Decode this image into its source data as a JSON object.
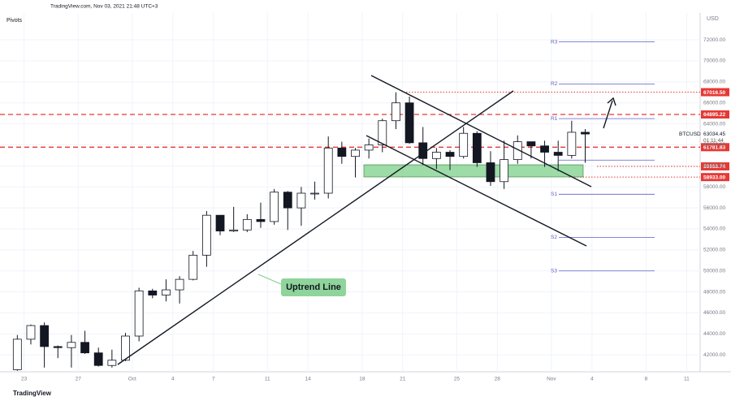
{
  "header": "TradingView.com, Nov 03, 2021 21:48 UTC+3",
  "footer": "TradingView",
  "chart_data": {
    "type": "candlestick",
    "title": "Pivots",
    "symbol": "BTCUSD",
    "currency": "USD",
    "last_price": {
      "value": 63034.45,
      "label": "63034.45"
    },
    "countdown": "01:11:44",
    "x": [
      "2021-09-22",
      "2021-09-23",
      "2021-09-24",
      "2021-09-25",
      "2021-09-26",
      "2021-09-27",
      "2021-09-28",
      "2021-09-29",
      "2021-09-30",
      "2021-10-01",
      "2021-10-02",
      "2021-10-03",
      "2021-10-04",
      "2021-10-05",
      "2021-10-06",
      "2021-10-07",
      "2021-10-08",
      "2021-10-09",
      "2021-10-10",
      "2021-10-11",
      "2021-10-12",
      "2021-10-13",
      "2021-10-14",
      "2021-10-15",
      "2021-10-16",
      "2021-10-17",
      "2021-10-18",
      "2021-10-19",
      "2021-10-20",
      "2021-10-21",
      "2021-10-22",
      "2021-10-23",
      "2021-10-24",
      "2021-10-25",
      "2021-10-26",
      "2021-10-27",
      "2021-10-28",
      "2021-10-29",
      "2021-10-30",
      "2021-10-31",
      "2021-11-01",
      "2021-11-02",
      "2021-11-03"
    ],
    "open": [
      40600,
      43500,
      44800,
      42800,
      42700,
      43200,
      42200,
      41000,
      41500,
      43800,
      48100,
      47700,
      48200,
      49200,
      51500,
      55300,
      53800,
      53900,
      54900,
      54700,
      57500,
      56000,
      57400,
      57400,
      61700,
      60900,
      61500,
      62000,
      64300,
      66000,
      62200,
      60700,
      61300,
      60900,
      63100,
      60300,
      58500,
      60600,
      62300,
      61900,
      61300,
      61000,
      63200
    ],
    "high": [
      43900,
      44900,
      45100,
      42900,
      43900,
      44300,
      42700,
      42500,
      44100,
      48400,
      48300,
      49200,
      49500,
      51900,
      55700,
      55300,
      56100,
      55400,
      56500,
      57800,
      57600,
      58000,
      58500,
      62800,
      62300,
      61700,
      62600,
      64500,
      67000,
      66600,
      63700,
      61700,
      61500,
      63700,
      63300,
      61400,
      62400,
      62900,
      62300,
      62400,
      62400,
      64300,
      63500
    ],
    "low": [
      40500,
      43000,
      40800,
      41700,
      40800,
      42100,
      40900,
      40800,
      41400,
      43300,
      47400,
      47100,
      46900,
      49100,
      50400,
      53400,
      53700,
      53700,
      54100,
      54400,
      53900,
      54300,
      56800,
      56900,
      60200,
      58900,
      60700,
      61300,
      63500,
      62100,
      60100,
      59700,
      59600,
      60700,
      59900,
      58100,
      57800,
      60200,
      60700,
      59900,
      59500,
      60700,
      60300
    ],
    "close": [
      43500,
      44800,
      42800,
      42700,
      43200,
      42200,
      41000,
      41500,
      43800,
      48100,
      47700,
      48200,
      49200,
      51500,
      55300,
      53800,
      53900,
      54900,
      54700,
      57500,
      56000,
      57400,
      57400,
      61700,
      60900,
      61500,
      62000,
      64300,
      66000,
      62200,
      60700,
      61300,
      60900,
      63100,
      60300,
      58500,
      60600,
      62300,
      61900,
      61300,
      61000,
      63200,
      63034.45
    ],
    "up_color": "#ffffff",
    "down_color": "#131722",
    "xlim": [
      "2021-09-22",
      "2021-11-12"
    ],
    "xticks": [
      {
        "value": "2021-09-23",
        "label": "23"
      },
      {
        "value": "2021-09-27",
        "label": "27"
      },
      {
        "value": "2021-10-01",
        "label": "Oct"
      },
      {
        "value": "2021-10-04",
        "label": "4"
      },
      {
        "value": "2021-10-07",
        "label": "7"
      },
      {
        "value": "2021-10-11",
        "label": "11"
      },
      {
        "value": "2021-10-14",
        "label": "14"
      },
      {
        "value": "2021-10-18",
        "label": "18"
      },
      {
        "value": "2021-10-21",
        "label": "21"
      },
      {
        "value": "2021-10-25",
        "label": "25"
      },
      {
        "value": "2021-10-28",
        "label": "28"
      },
      {
        "value": "2021-11-01",
        "label": "Nov"
      },
      {
        "value": "2021-11-04",
        "label": "4"
      },
      {
        "value": "2021-11-08",
        "label": "8"
      },
      {
        "value": "2021-11-11",
        "label": "11"
      }
    ],
    "ylim": [
      40400,
      74400
    ],
    "yticks": [
      {
        "value": 42000,
        "label": "42000.00"
      },
      {
        "value": 44000,
        "label": "44000.00"
      },
      {
        "value": 46000,
        "label": "46000.00"
      },
      {
        "value": 48000,
        "label": "48000.00"
      },
      {
        "value": 50000,
        "label": "50000.00"
      },
      {
        "value": 52000,
        "label": "52000.00"
      },
      {
        "value": 54000,
        "label": "54000.00"
      },
      {
        "value": 56000,
        "label": "56000.00"
      },
      {
        "value": 58000,
        "label": "58000.00"
      },
      {
        "value": 60000,
        "label": "60000.00"
      },
      {
        "value": 62000,
        "label": "62000.00"
      },
      {
        "value": 64000,
        "label": "64000.00"
      },
      {
        "value": 66000,
        "label": "66000.00"
      },
      {
        "value": 68000,
        "label": "68000.00"
      },
      {
        "value": 70000,
        "label": "70000.00"
      },
      {
        "value": 72000,
        "label": "72000.00"
      }
    ],
    "grid": true,
    "levels": [
      {
        "value": 67016.5,
        "label": "67016.50",
        "style": "dotted",
        "color": "#e53935"
      },
      {
        "value": 64895.22,
        "label": "64895.22",
        "style": "dashed",
        "color": "#e53935"
      },
      {
        "value": 61781.83,
        "label": "61781.83",
        "style": "dashed",
        "color": "#e53935"
      },
      {
        "value": 59953.74,
        "label": "59953.74",
        "style": "dotted",
        "color": "#e53935"
      },
      {
        "value": 58933,
        "label": "58933.00",
        "style": "dotted",
        "color": "#e53935"
      }
    ],
    "pivots": [
      {
        "label": "R3",
        "value": 71800
      },
      {
        "label": "R2",
        "value": 67800
      },
      {
        "label": "R1",
        "value": 64500
      },
      {
        "value": 60550
      },
      {
        "label": "S1",
        "value": 57300
      },
      {
        "label": "S2",
        "value": 53200
      },
      {
        "label": "S3",
        "value": 50000
      }
    ],
    "pivot_color": "#5b5fc7",
    "annotations": [
      "Uptrend Line"
    ]
  }
}
